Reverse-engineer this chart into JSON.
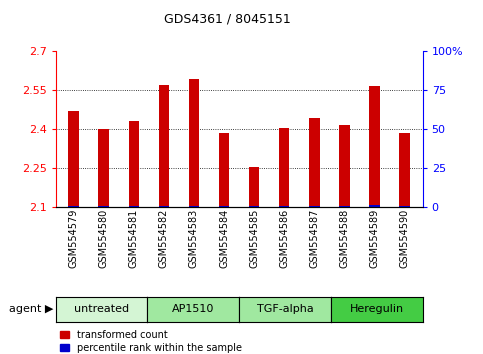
{
  "title": "GDS4361 / 8045151",
  "samples": [
    "GSM554579",
    "GSM554580",
    "GSM554581",
    "GSM554582",
    "GSM554583",
    "GSM554584",
    "GSM554585",
    "GSM554586",
    "GSM554587",
    "GSM554588",
    "GSM554589",
    "GSM554590"
  ],
  "red_values": [
    2.47,
    2.4,
    2.43,
    2.57,
    2.595,
    2.385,
    2.255,
    2.405,
    2.445,
    2.415,
    2.565,
    2.387
  ],
  "blue_pct": [
    5,
    3,
    5,
    6,
    6,
    5,
    4,
    5,
    5,
    5,
    7,
    4
  ],
  "y_min": 2.1,
  "y_max": 2.7,
  "y_ticks": [
    2.1,
    2.25,
    2.4,
    2.55,
    2.7
  ],
  "y2_labels": [
    "0",
    "25",
    "50",
    "75",
    "100%"
  ],
  "y2_pcts": [
    0,
    25,
    50,
    75,
    100
  ],
  "groups": [
    {
      "label": "untreated",
      "start": 0,
      "end": 3,
      "color": "#d4f5d4"
    },
    {
      "label": "AP1510",
      "start": 3,
      "end": 6,
      "color": "#a0e8a0"
    },
    {
      "label": "TGF-alpha",
      "start": 6,
      "end": 9,
      "color": "#a0e8a0"
    },
    {
      "label": "Heregulin",
      "start": 9,
      "end": 12,
      "color": "#44cc44"
    }
  ],
  "bar_color_red": "#cc0000",
  "bar_color_blue": "#0000cc",
  "bar_width": 0.35,
  "title_fontsize": 9,
  "tick_fontsize": 7,
  "legend_fontsize": 7,
  "group_label_fontsize": 8
}
